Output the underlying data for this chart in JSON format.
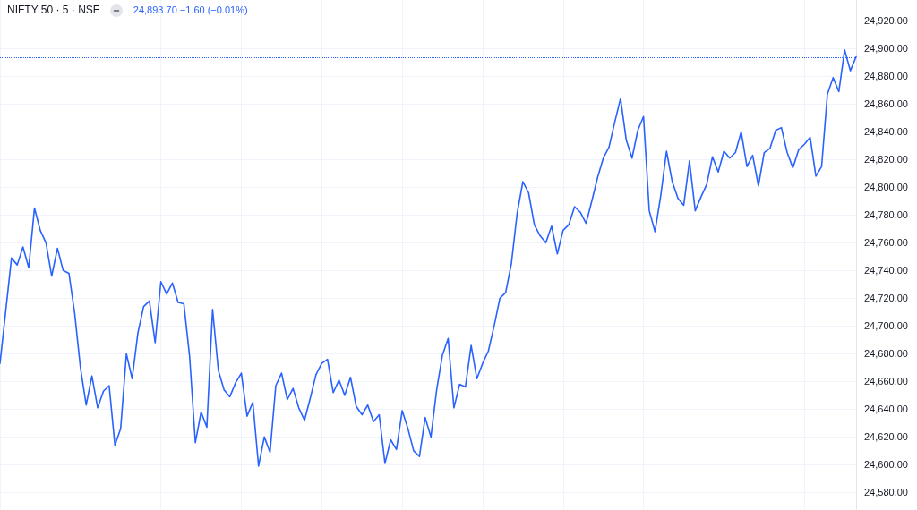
{
  "chart_data": {
    "type": "line",
    "title": "NIFTY 50 · 5 · NSE",
    "annotations": [
      "24,893.70 −1.60 (−0.01%)"
    ],
    "categories": [
      null,
      null,
      null,
      null,
      null,
      null,
      null,
      null,
      null,
      null,
      null,
      null,
      null,
      null,
      null,
      null,
      null,
      null,
      null,
      null,
      null,
      null,
      null,
      null,
      null,
      null,
      null,
      null,
      null,
      null,
      null,
      null,
      null,
      null,
      null,
      null,
      null,
      null,
      null,
      null,
      null,
      null,
      null,
      null,
      null,
      null,
      null,
      null,
      null,
      null,
      null,
      null,
      null,
      null,
      null,
      null,
      null,
      null,
      null,
      null,
      null,
      null,
      null,
      null,
      null,
      null,
      null,
      null,
      null,
      null,
      null,
      null,
      null,
      null,
      null,
      null,
      null,
      null,
      null,
      null,
      null,
      null,
      null,
      null,
      null,
      null,
      null,
      null,
      null,
      null,
      null,
      null,
      null,
      null,
      null,
      null,
      null,
      null,
      null,
      null,
      null,
      null,
      null,
      null,
      null,
      null,
      null,
      null,
      null,
      null,
      null,
      null,
      null,
      null,
      null,
      null,
      null,
      null,
      null,
      null,
      null,
      null,
      null,
      null,
      null,
      null,
      null,
      null,
      null,
      null,
      null,
      null,
      null,
      null,
      null,
      null,
      null,
      null,
      null,
      null,
      null,
      null,
      null,
      null,
      null,
      null,
      null,
      null,
      null,
      null
    ],
    "values": [
      24673,
      24711,
      24749,
      24744,
      24757,
      24742,
      24785,
      24769,
      24760,
      24736,
      24756,
      24740,
      24738,
      24709,
      24670,
      24643,
      24664,
      24641,
      24653,
      24657,
      24614,
      24626,
      24680,
      24662,
      24695,
      24714,
      24718,
      24688,
      24732,
      24723,
      24731,
      24717,
      24716,
      24678,
      24616,
      24638,
      24627,
      24712,
      24668,
      24654,
      24649,
      24659,
      24666,
      24635,
      24645,
      24599,
      24620,
      24609,
      24657,
      24666,
      24647,
      24655,
      24641,
      24632,
      24648,
      24665,
      24673,
      24676,
      24652,
      24661,
      24650,
      24663,
      24642,
      24636,
      24643,
      24631,
      24636,
      24601,
      24618,
      24611,
      24639,
      24626,
      24610,
      24606,
      24634,
      24620,
      24654,
      24679,
      24691,
      24641,
      24658,
      24656,
      24686,
      24662,
      24673,
      24682,
      24700,
      24720,
      24724,
      24745,
      24781,
      24804,
      24796,
      24773,
      24765,
      24760,
      24772,
      24752,
      24769,
      24773,
      24786,
      24782,
      24774,
      24790,
      24807,
      24821,
      24829,
      24847,
      24864,
      24834,
      24821,
      24841,
      24851,
      24783,
      24768,
      24794,
      24826,
      24804,
      24792,
      24787,
      24819,
      24783,
      24793,
      24802,
      24822,
      24811,
      24826,
      24821,
      24825,
      24840,
      24815,
      24823,
      24801,
      24825,
      24828,
      24841,
      24843,
      24825,
      24814,
      24827,
      24831,
      24836,
      24808,
      24815,
      24867,
      24879,
      24869,
      24899,
      24884,
      24894
    ],
    "color": "#2962ff",
    "line_style": "solid",
    "ylim": [
      24568,
      24935
    ],
    "yticks": [
      {
        "value": 24580,
        "label": "24,580.00"
      },
      {
        "value": 24600,
        "label": "24,600.00"
      },
      {
        "value": 24620,
        "label": "24,620.00"
      },
      {
        "value": 24640,
        "label": "24,640.00"
      },
      {
        "value": 24660,
        "label": "24,660.00"
      },
      {
        "value": 24680,
        "label": "24,680.00"
      },
      {
        "value": 24700,
        "label": "24,700.00"
      },
      {
        "value": 24720,
        "label": "24,720.00"
      },
      {
        "value": 24740,
        "label": "24,740.00"
      },
      {
        "value": 24760,
        "label": "24,760.00"
      },
      {
        "value": 24780,
        "label": "24,780.00"
      },
      {
        "value": 24800,
        "label": "24,800.00"
      },
      {
        "value": 24820,
        "label": "24,820.00"
      },
      {
        "value": 24840,
        "label": "24,840.00"
      },
      {
        "value": 24860,
        "label": "24,860.00"
      },
      {
        "value": 24880,
        "label": "24,880.00"
      },
      {
        "value": 24900,
        "label": "24,900.00"
      },
      {
        "value": 24920,
        "label": "24,920.00"
      }
    ],
    "grid": true,
    "tick_labels": "y",
    "ref_lines": [
      {
        "axis": "y",
        "value": 24893.7,
        "color": "#2962ff",
        "line_style": "dotted"
      }
    ]
  }
}
